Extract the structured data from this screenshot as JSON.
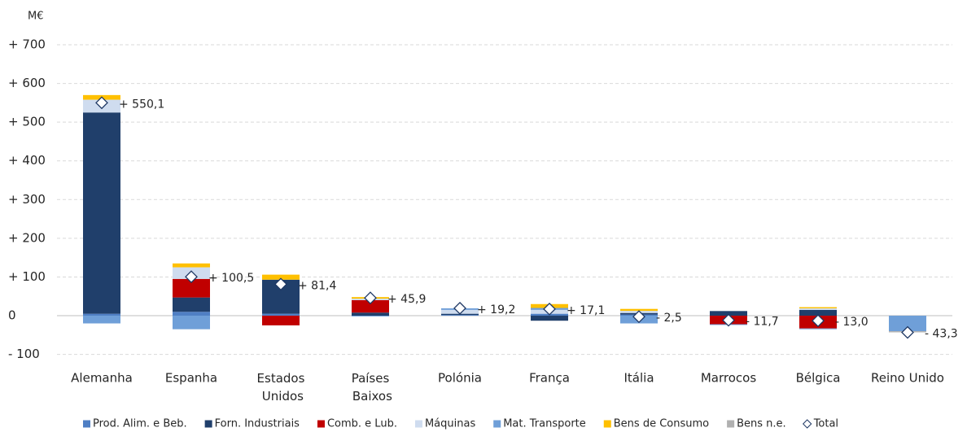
{
  "chart_data": {
    "type": "stacked_bar",
    "y_label": "M€",
    "categories": [
      "Alemanha",
      "Espanha",
      "Estados Unidos",
      "Países Baixos",
      "Polónia",
      "França",
      "Itália",
      "Marrocos",
      "Bélgica",
      "Reino Unido"
    ],
    "series": [
      {
        "name": "Prod. Alim. e Beb.",
        "color": "#4f7fc4",
        "values": [
          5,
          10,
          5,
          0,
          2,
          5,
          3,
          0,
          0,
          0
        ]
      },
      {
        "name": "Forn. Industriais",
        "color": "#203f6b",
        "values": [
          520,
          37,
          88,
          8,
          3,
          -13,
          4,
          12,
          15,
          0
        ]
      },
      {
        "name": "Comb. e Lub.",
        "color": "#c00000",
        "values": [
          0,
          48,
          -25,
          32,
          0,
          0,
          0,
          -22,
          -33,
          0
        ]
      },
      {
        "name": "Máquinas",
        "color": "#cfdcef",
        "values": [
          33,
          30,
          0,
          4,
          10,
          10,
          5.5,
          0,
          4,
          0
        ]
      },
      {
        "name": "Mat. Transporte",
        "color": "#6f9fd8",
        "values": [
          -20,
          -35,
          0,
          -2,
          4,
          5,
          -20,
          -2,
          -2,
          -40
        ]
      },
      {
        "name": "Bens de Consumo",
        "color": "#ffc000",
        "values": [
          12,
          10,
          13,
          4,
          0,
          10,
          5,
          0,
          3,
          0
        ]
      },
      {
        "name": "Bens n.e.",
        "color": "#b0b0b0",
        "values": [
          0,
          0,
          0,
          0,
          0,
          0,
          0,
          0,
          0,
          -3
        ]
      },
      {
        "name": "Total",
        "color": "#1f3864",
        "marker": "diamond",
        "values": [
          550.1,
          100.5,
          81.4,
          45.9,
          19.2,
          17.1,
          -2.5,
          -11.7,
          -13.0,
          -43.3
        ],
        "value_labels": [
          "+ 550,1",
          "+ 100,5",
          "+ 81,4",
          "+ 45,9",
          "+ 19,2",
          "+ 17,1",
          "- 2,5",
          "- 11,7",
          "- 13,0",
          "- 43,3"
        ]
      }
    ],
    "ylim": [
      -100,
      700
    ],
    "yticks": [
      {
        "value": -100,
        "label": "- 100"
      },
      0,
      {
        "value": 100,
        "label": "+ 100"
      },
      {
        "value": 200,
        "label": "+ 200"
      },
      {
        "value": 300,
        "label": "+ 300"
      },
      {
        "value": 400,
        "label": "+ 400"
      },
      {
        "value": 500,
        "label": "+ 500"
      },
      {
        "value": 600,
        "label": "+ 600"
      },
      {
        "value": 700,
        "label": "+ 700"
      }
    ],
    "grid": true
  }
}
